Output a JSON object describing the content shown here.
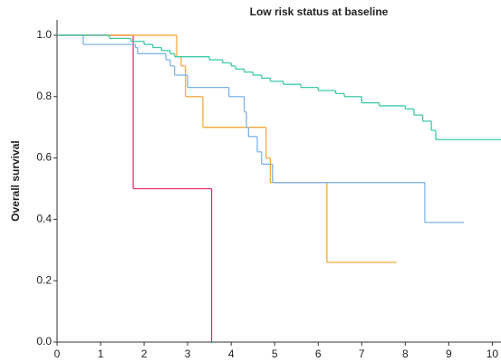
{
  "chart_data": {
    "type": "step",
    "title": "Low risk status at baseline",
    "ylabel": "Overall survival",
    "xlim": [
      0,
      10.2
    ],
    "ylim": [
      0,
      1.05
    ],
    "xticks": [
      0,
      1,
      2,
      3,
      4,
      5,
      6,
      7,
      8,
      9,
      10
    ],
    "yticks": [
      {
        "value": 0,
        "label": "0.0"
      },
      0.2,
      0.4,
      0.6,
      0.8,
      {
        "value": 1,
        "label": "1.0"
      }
    ],
    "grid": false,
    "series": [
      {
        "color": "#e8336a",
        "x": [
          0,
          1.75,
          3.55
        ],
        "values": [
          1,
          0.5,
          0
        ]
      },
      {
        "color": "#f5a93a",
        "x": [
          0,
          2.75,
          2.85,
          2.95,
          3.35,
          4.8,
          4.9,
          6.2,
          7.8
        ],
        "values": [
          1,
          0.93,
          0.9,
          0.8,
          0.7,
          0.6,
          0.52,
          0.26,
          0.26
        ]
      },
      {
        "color": "#80b3ea",
        "x": [
          0,
          0.6,
          1.8,
          1.85,
          2.5,
          2.6,
          2.7,
          3.0,
          3.95,
          4.3,
          4.35,
          4.4,
          4.6,
          4.7,
          4.95,
          8.45,
          9.35
        ],
        "values": [
          1,
          0.97,
          0.96,
          0.94,
          0.92,
          0.9,
          0.87,
          0.83,
          0.8,
          0.75,
          0.7,
          0.67,
          0.62,
          0.58,
          0.52,
          0.39,
          0.39
        ]
      },
      {
        "color": "#3fc9a9",
        "x": [
          0,
          1.2,
          1.7,
          2.0,
          2.2,
          2.4,
          2.6,
          2.7,
          3.5,
          3.8,
          4.0,
          4.1,
          4.3,
          4.5,
          4.7,
          4.9,
          5.2,
          5.6,
          6.0,
          6.4,
          6.6,
          7.0,
          7.4,
          8.0,
          8.2,
          8.4,
          8.6,
          8.7,
          10.2
        ],
        "values": [
          1,
          0.99,
          0.98,
          0.97,
          0.96,
          0.95,
          0.94,
          0.93,
          0.92,
          0.91,
          0.9,
          0.89,
          0.88,
          0.87,
          0.86,
          0.85,
          0.84,
          0.83,
          0.82,
          0.81,
          0.8,
          0.78,
          0.77,
          0.76,
          0.74,
          0.72,
          0.69,
          0.66,
          0.66
        ]
      }
    ]
  }
}
